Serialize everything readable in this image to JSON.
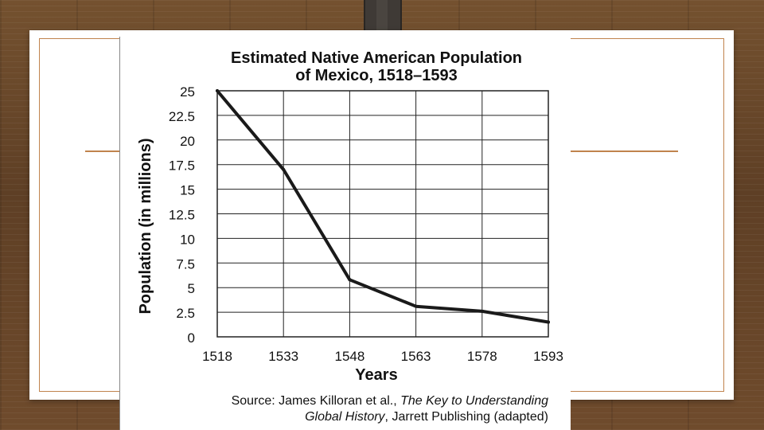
{
  "slide": {
    "accent_color": "#c0834d",
    "background_color": "#ffffff"
  },
  "chart_data": {
    "type": "line",
    "title": "Estimated Native American Population",
    "subtitle": "of Mexico, 1518–1593",
    "xlabel": "Years",
    "ylabel": "Population (in millions)",
    "x": [
      1518,
      1533,
      1548,
      1563,
      1578,
      1593
    ],
    "values": [
      25,
      17,
      5.8,
      3.1,
      2.6,
      1.5
    ],
    "xlim": [
      1518,
      1593
    ],
    "ylim": [
      0,
      25
    ],
    "x_ticks": [
      "1518",
      "1533",
      "1548",
      "1563",
      "1578",
      "1593"
    ],
    "y_ticks": [
      "0",
      "2.5",
      "5",
      "7.5",
      "10",
      "12.5",
      "15",
      "17.5",
      "20",
      "22.5",
      "25"
    ],
    "grid": true,
    "line_color": "#1a1a1a"
  },
  "source": {
    "prefix": "Source: James Killoran et al., ",
    "title_part1": "The Key to Understanding",
    "title_part2": "Global History",
    "suffix": ", Jarrett Publishing (adapted)"
  }
}
